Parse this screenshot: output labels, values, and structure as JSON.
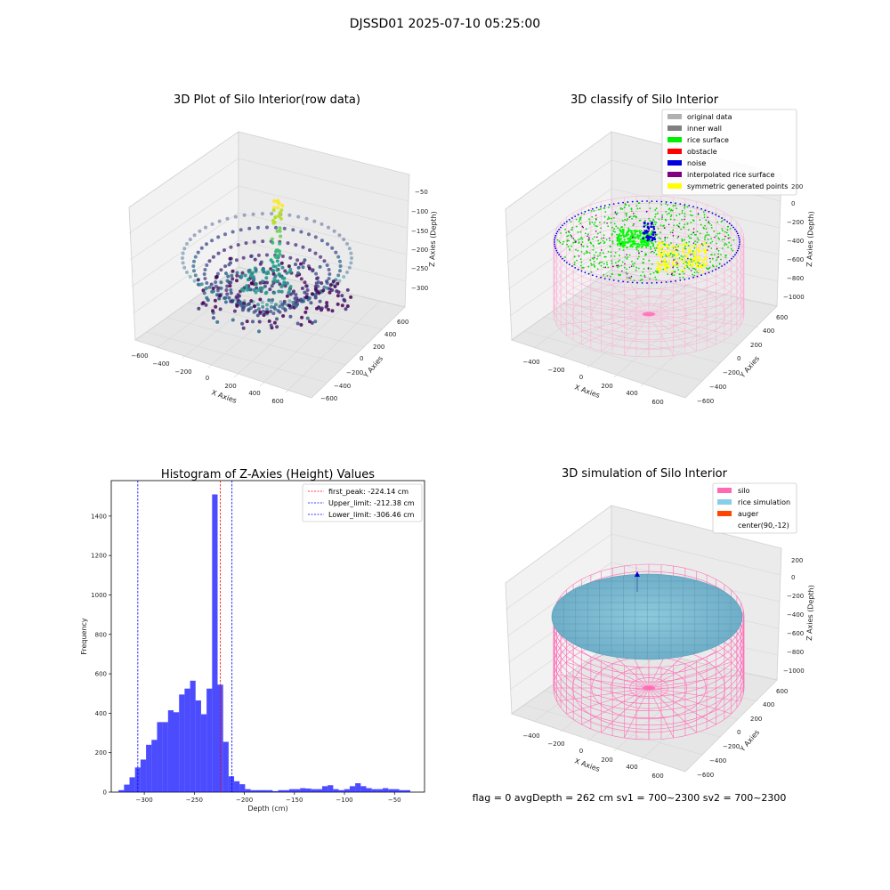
{
  "suptitle": "DJSSD01 2025-07-10 05:25:00",
  "footer_text": "flag = 0    avgDepth = 262 cm  sv1 = 700~2300  sv2 = 700~2300",
  "panel1": {
    "title": "3D Plot of Silo Interior(row data)",
    "xlabel": "X Axies",
    "ylabel": "Y Axies",
    "zlabel": "Z Axies (Depth)",
    "xticks": [
      "−600",
      "−400",
      "−200",
      "0",
      "200",
      "400",
      "600"
    ],
    "yticks": [
      "−600",
      "−400",
      "−200",
      "0",
      "200",
      "400",
      "600"
    ],
    "zticks": [
      "−50",
      "−100",
      "−150",
      "−200",
      "−250",
      "−300"
    ]
  },
  "panel2": {
    "title": "3D classify of Silo Interior",
    "xlabel": "X Axies",
    "ylabel": "Y Axies",
    "zlabel": "Z Axies (Depth)",
    "xticks": [
      "−400",
      "−200",
      "0",
      "200",
      "400",
      "600"
    ],
    "yticks": [
      "−600",
      "−400",
      "−200",
      "0",
      "200",
      "400",
      "600"
    ],
    "zticks": [
      "200",
      "0",
      "−200",
      "−400",
      "−600",
      "−800",
      "−1000"
    ],
    "legend": [
      {
        "label": "original data",
        "color": "#b0b0b0"
      },
      {
        "label": "inner wall",
        "color": "#808080"
      },
      {
        "label": "rice surface",
        "color": "#00ee00"
      },
      {
        "label": "obstacle",
        "color": "#ff0000"
      },
      {
        "label": "noise",
        "color": "#0000dd"
      },
      {
        "label": "interpolated rice surface",
        "color": "#800080"
      },
      {
        "label": "symmetric generated points",
        "color": "#ffff00"
      }
    ]
  },
  "panel4": {
    "title": "3D simulation of Silo Interior",
    "xlabel": "X Axies",
    "ylabel": "Y Axies",
    "zlabel": "Z Axies (Depth)",
    "xticks": [
      "−400",
      "−200",
      "0",
      "200",
      "400",
      "600"
    ],
    "yticks": [
      "−600",
      "−400",
      "−200",
      "0",
      "200",
      "400",
      "600"
    ],
    "zticks": [
      "200",
      "0",
      "−200",
      "−400",
      "−600",
      "−800",
      "−1000"
    ],
    "legend": [
      {
        "label": "silo",
        "color": "#ff69b4"
      },
      {
        "label": "rice simulation",
        "color": "#87ceeb"
      },
      {
        "label": "auger",
        "color": "#ff4500"
      },
      {
        "label": "center(90,-12)",
        "color": "#ffffff"
      }
    ]
  },
  "chart_data": {
    "type": "bar",
    "title": "Histogram of Z-Axies (Height) Values",
    "xlabel": "Depth (cm)",
    "ylabel": "Frequency",
    "xlim": [
      -333,
      -20
    ],
    "ylim": [
      0,
      1580
    ],
    "xticks": [
      -300,
      -250,
      -200,
      -150,
      -100,
      -50
    ],
    "yticks": [
      0,
      200,
      400,
      600,
      800,
      1000,
      1200,
      1400
    ],
    "bar_color": "#0000ff",
    "bin_width": 5.5,
    "bins": [
      [
        -323,
        10
      ],
      [
        -317.5,
        38
      ],
      [
        -312,
        75
      ],
      [
        -306.5,
        125
      ],
      [
        -301,
        165
      ],
      [
        -295.5,
        240
      ],
      [
        -290,
        265
      ],
      [
        -284.5,
        355
      ],
      [
        -279,
        355
      ],
      [
        -273.5,
        415
      ],
      [
        -268,
        405
      ],
      [
        -262.5,
        495
      ],
      [
        -257,
        525
      ],
      [
        -251.5,
        565
      ],
      [
        -246,
        465
      ],
      [
        -240.5,
        395
      ],
      [
        -235,
        525
      ],
      [
        -229.5,
        1510
      ],
      [
        -224,
        545
      ],
      [
        -218.5,
        255
      ],
      [
        -213,
        80
      ],
      [
        -207.5,
        55
      ],
      [
        -202,
        40
      ],
      [
        -196.5,
        15
      ],
      [
        -191,
        10
      ],
      [
        -185.5,
        10
      ],
      [
        -180,
        10
      ],
      [
        -174.5,
        10
      ],
      [
        -169,
        5
      ],
      [
        -163.5,
        10
      ],
      [
        -158,
        10
      ],
      [
        -152.5,
        15
      ],
      [
        -147,
        15
      ],
      [
        -141.5,
        20
      ],
      [
        -136,
        18
      ],
      [
        -130.5,
        15
      ],
      [
        -125,
        15
      ],
      [
        -119.5,
        30
      ],
      [
        -114,
        35
      ],
      [
        -108.5,
        15
      ],
      [
        -103,
        10
      ],
      [
        -97.5,
        15
      ],
      [
        -92,
        30
      ],
      [
        -86.5,
        45
      ],
      [
        -81,
        30
      ],
      [
        -75.5,
        20
      ],
      [
        -70,
        15
      ],
      [
        -64.5,
        15
      ],
      [
        -59,
        20
      ],
      [
        -53.5,
        15
      ],
      [
        -48,
        15
      ],
      [
        -42.5,
        10
      ],
      [
        -37,
        10
      ]
    ],
    "vlines": [
      {
        "label": "first_peak: -224.14 cm",
        "x": -224.14,
        "color": "#ff0000"
      },
      {
        "label": "Upper_limit: -212.38 cm",
        "x": -212.38,
        "color": "#0000ff"
      },
      {
        "label": "Lower_limit: -306.46 cm",
        "x": -306.46,
        "color": "#0000ff"
      }
    ]
  }
}
